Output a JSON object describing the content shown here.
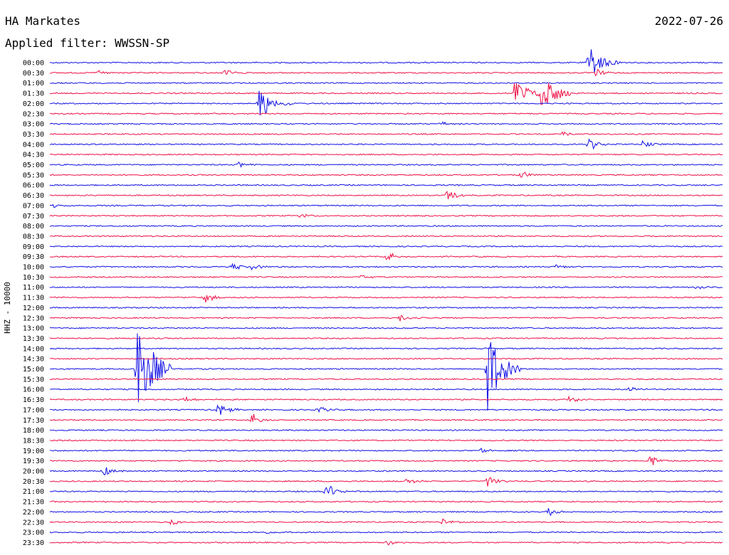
{
  "header": {
    "station": "HA Markates",
    "date": "2022-07-26",
    "filter": "Applied filter: WWSSN-SP",
    "channel": "HHZ - 10000"
  },
  "colors": {
    "blue": "#1010e6",
    "red": "#ee1045"
  },
  "chart_data": {
    "type": "line",
    "title": "HA Markates",
    "subtitle": "Applied filter: WWSSN-SP",
    "ylabel": "HHZ - 10000",
    "x": "time within half-hour row",
    "rows": [
      {
        "label": "00:00",
        "color": "blue",
        "events": [
          {
            "t": 0.8,
            "amp": 28
          }
        ]
      },
      {
        "label": "00:30",
        "color": "red",
        "events": [
          {
            "t": 0.07,
            "amp": 5
          },
          {
            "t": 0.26,
            "amp": 5
          },
          {
            "t": 0.81,
            "amp": 6
          }
        ]
      },
      {
        "label": "01:00",
        "color": "blue",
        "events": []
      },
      {
        "label": "01:30",
        "color": "red",
        "events": [
          {
            "t": 0.69,
            "amp": 22
          },
          {
            "t": 0.73,
            "amp": 30
          }
        ]
      },
      {
        "label": "02:00",
        "color": "blue",
        "events": [
          {
            "t": 0.31,
            "amp": 26
          }
        ]
      },
      {
        "label": "02:30",
        "color": "red",
        "events": []
      },
      {
        "label": "03:00",
        "color": "blue",
        "events": [
          {
            "t": 0.58,
            "amp": 5
          }
        ]
      },
      {
        "label": "03:30",
        "color": "red",
        "events": [
          {
            "t": 0.76,
            "amp": 4
          }
        ]
      },
      {
        "label": "04:00",
        "color": "blue",
        "events": [
          {
            "t": 0.8,
            "amp": 12
          },
          {
            "t": 0.88,
            "amp": 5
          }
        ]
      },
      {
        "label": "04:30",
        "color": "red",
        "events": []
      },
      {
        "label": "05:00",
        "color": "blue",
        "events": [
          {
            "t": 0.28,
            "amp": 5
          }
        ]
      },
      {
        "label": "05:30",
        "color": "red",
        "events": [
          {
            "t": 0.7,
            "amp": 6
          }
        ]
      },
      {
        "label": "06:00",
        "color": "blue",
        "events": []
      },
      {
        "label": "06:30",
        "color": "red",
        "events": [
          {
            "t": 0.59,
            "amp": 11
          }
        ]
      },
      {
        "label": "07:00",
        "color": "blue",
        "events": [
          {
            "t": 0.005,
            "amp": 3
          }
        ]
      },
      {
        "label": "07:30",
        "color": "red",
        "events": [
          {
            "t": 0.37,
            "amp": 5
          }
        ]
      },
      {
        "label": "08:00",
        "color": "blue",
        "events": []
      },
      {
        "label": "08:30",
        "color": "red",
        "events": []
      },
      {
        "label": "09:00",
        "color": "blue",
        "events": []
      },
      {
        "label": "09:30",
        "color": "red",
        "events": [
          {
            "t": 0.5,
            "amp": 8
          }
        ]
      },
      {
        "label": "10:00",
        "color": "blue",
        "events": [
          {
            "t": 0.27,
            "amp": 6
          },
          {
            "t": 0.3,
            "amp": 5
          },
          {
            "t": 0.75,
            "amp": 3
          }
        ]
      },
      {
        "label": "10:30",
        "color": "red",
        "events": [
          {
            "t": 0.46,
            "amp": 3
          }
        ]
      },
      {
        "label": "11:00",
        "color": "blue",
        "events": [
          {
            "t": 0.96,
            "amp": 4
          }
        ]
      },
      {
        "label": "11:30",
        "color": "red",
        "events": [
          {
            "t": 0.23,
            "amp": 8
          }
        ]
      },
      {
        "label": "12:00",
        "color": "blue",
        "events": []
      },
      {
        "label": "12:30",
        "color": "red",
        "events": [
          {
            "t": 0.52,
            "amp": 6
          }
        ]
      },
      {
        "label": "13:00",
        "color": "blue",
        "events": []
      },
      {
        "label": "13:30",
        "color": "red",
        "events": []
      },
      {
        "label": "14:00",
        "color": "blue",
        "events": []
      },
      {
        "label": "14:30",
        "color": "red",
        "events": []
      },
      {
        "label": "15:00",
        "color": "blue",
        "events": [
          {
            "t": 0.13,
            "amp": 90
          },
          {
            "t": 0.65,
            "amp": 60
          }
        ]
      },
      {
        "label": "15:30",
        "color": "red",
        "events": []
      },
      {
        "label": "16:00",
        "color": "blue",
        "events": [
          {
            "t": 0.86,
            "amp": 5
          }
        ]
      },
      {
        "label": "16:30",
        "color": "red",
        "events": [
          {
            "t": 0.2,
            "amp": 5
          },
          {
            "t": 0.77,
            "amp": 6
          }
        ]
      },
      {
        "label": "17:00",
        "color": "blue",
        "events": [
          {
            "t": 0.25,
            "amp": 12
          },
          {
            "t": 0.4,
            "amp": 5
          }
        ]
      },
      {
        "label": "17:30",
        "color": "red",
        "events": [
          {
            "t": 0.3,
            "amp": 10
          }
        ]
      },
      {
        "label": "18:00",
        "color": "blue",
        "events": []
      },
      {
        "label": "18:30",
        "color": "red",
        "events": []
      },
      {
        "label": "19:00",
        "color": "blue",
        "events": [
          {
            "t": 0.64,
            "amp": 4
          }
        ]
      },
      {
        "label": "19:30",
        "color": "red",
        "events": [
          {
            "t": 0.89,
            "amp": 10
          }
        ]
      },
      {
        "label": "20:00",
        "color": "blue",
        "events": [
          {
            "t": 0.08,
            "amp": 7
          }
        ]
      },
      {
        "label": "20:30",
        "color": "red",
        "events": [
          {
            "t": 0.53,
            "amp": 6
          },
          {
            "t": 0.65,
            "amp": 9
          }
        ]
      },
      {
        "label": "21:00",
        "color": "blue",
        "events": [
          {
            "t": 0.41,
            "amp": 14
          }
        ]
      },
      {
        "label": "21:30",
        "color": "red",
        "events": []
      },
      {
        "label": "22:00",
        "color": "blue",
        "events": [
          {
            "t": 0.74,
            "amp": 6
          }
        ]
      },
      {
        "label": "22:30",
        "color": "red",
        "events": [
          {
            "t": 0.18,
            "amp": 5
          },
          {
            "t": 0.58,
            "amp": 6
          }
        ]
      },
      {
        "label": "23:00",
        "color": "blue",
        "events": [
          {
            "t": 0.32,
            "amp": 4
          }
        ]
      },
      {
        "label": "23:30",
        "color": "red",
        "events": [
          {
            "t": 0.5,
            "amp": 5
          }
        ]
      }
    ]
  }
}
